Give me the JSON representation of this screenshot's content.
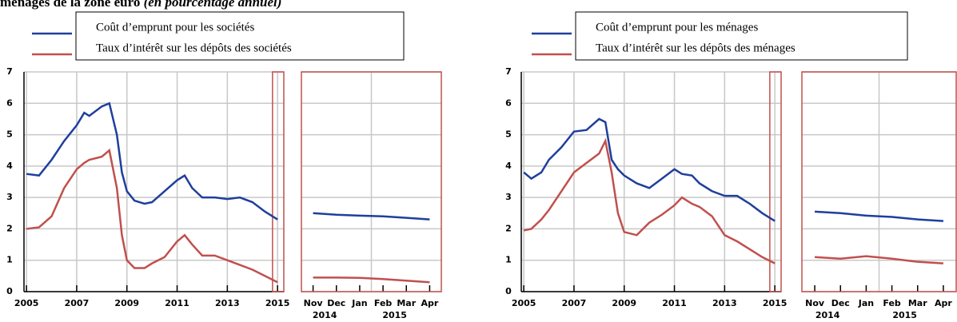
{
  "header": {
    "title": "ménages de la zone euro",
    "subtitle": "(en pourcentage annuel)"
  },
  "chart_data": [
    {
      "type": "line",
      "x": [
        2005,
        2005.5,
        2006,
        2006.5,
        2007,
        2007.3,
        2007.5,
        2008,
        2008.3,
        2008.6,
        2008.8,
        2009,
        2009.3,
        2009.7,
        2010,
        2010.5,
        2011,
        2011.3,
        2011.6,
        2012,
        2012.5,
        2013,
        2013.5,
        2014,
        2014.5,
        2015
      ],
      "series": [
        {
          "name": "Coût d’emprunt pour les sociétés",
          "color": "#1f3f9c",
          "values": [
            3.75,
            3.7,
            4.2,
            4.8,
            5.3,
            5.7,
            5.6,
            5.9,
            6.0,
            5.0,
            3.8,
            3.2,
            2.9,
            2.8,
            2.85,
            3.2,
            3.55,
            3.7,
            3.3,
            3.0,
            3.0,
            2.95,
            3.0,
            2.85,
            2.55,
            2.3
          ]
        },
        {
          "name": "Taux d’intérêt sur les dépôts des sociétés",
          "color": "#c0504d",
          "values": [
            2.0,
            2.05,
            2.4,
            3.3,
            3.9,
            4.1,
            4.2,
            4.3,
            4.5,
            3.3,
            1.8,
            1.0,
            0.75,
            0.75,
            0.9,
            1.1,
            1.6,
            1.8,
            1.5,
            1.15,
            1.15,
            1.0,
            0.85,
            0.7,
            0.5,
            0.3
          ]
        }
      ],
      "xlim": [
        2004.9,
        2015.25
      ],
      "xticks": [
        2005,
        2007,
        2009,
        2011,
        2013,
        2015
      ],
      "ylim": [
        0,
        7
      ],
      "yticks": [
        0,
        1,
        2,
        3,
        4,
        5,
        6,
        7
      ],
      "grid": true,
      "highlight": [
        2014.8,
        2015.25
      ]
    },
    {
      "type": "line",
      "categories": [
        "Nov",
        "Dec",
        "Jan",
        "Feb",
        "Mar",
        "Apr"
      ],
      "year_groups": [
        {
          "label": "2014",
          "span": 2
        },
        {
          "label": "2015",
          "span": 4
        }
      ],
      "series": [
        {
          "color": "#1f3f9c",
          "values": [
            2.5,
            2.45,
            2.42,
            2.4,
            2.35,
            2.3
          ]
        },
        {
          "color": "#c0504d",
          "values": [
            0.45,
            0.45,
            0.44,
            0.4,
            0.35,
            0.3
          ]
        }
      ],
      "ylim": [
        0,
        7
      ],
      "yticks": [
        0,
        1,
        2,
        3,
        4,
        5,
        6,
        7
      ],
      "grid": true
    },
    {
      "type": "line",
      "x": [
        2005,
        2005.3,
        2005.7,
        2006,
        2006.5,
        2007,
        2007.5,
        2008,
        2008.25,
        2008.5,
        2008.75,
        2009,
        2009.5,
        2010,
        2010.5,
        2011,
        2011.3,
        2011.7,
        2012,
        2012.5,
        2013,
        2013.5,
        2014,
        2014.5,
        2015
      ],
      "series": [
        {
          "name": "Coût d’emprunt pour les ménages",
          "color": "#1f3f9c",
          "values": [
            3.8,
            3.6,
            3.8,
            4.2,
            4.6,
            5.1,
            5.15,
            5.5,
            5.4,
            4.2,
            3.9,
            3.7,
            3.45,
            3.3,
            3.6,
            3.9,
            3.75,
            3.7,
            3.45,
            3.2,
            3.05,
            3.05,
            2.8,
            2.5,
            2.25
          ]
        },
        {
          "name": "Taux d’intérêt sur les dépôts des ménages",
          "color": "#c0504d",
          "values": [
            1.95,
            2.0,
            2.3,
            2.6,
            3.2,
            3.8,
            4.1,
            4.4,
            4.8,
            3.8,
            2.5,
            1.9,
            1.8,
            2.2,
            2.45,
            2.75,
            3.0,
            2.8,
            2.7,
            2.4,
            1.8,
            1.6,
            1.35,
            1.1,
            0.9
          ]
        }
      ],
      "xlim": [
        2004.9,
        2015.25
      ],
      "xticks": [
        2005,
        2007,
        2009,
        2011,
        2013,
        2015
      ],
      "ylim": [
        0,
        7
      ],
      "yticks": [
        0,
        1,
        2,
        3,
        4,
        5,
        6,
        7
      ],
      "grid": true,
      "highlight": [
        2014.8,
        2015.25
      ]
    },
    {
      "type": "line",
      "categories": [
        "Nov",
        "Dec",
        "Jan",
        "Feb",
        "Mar",
        "Apr"
      ],
      "year_groups": [
        {
          "label": "2014",
          "span": 2
        },
        {
          "label": "2015",
          "span": 4
        }
      ],
      "series": [
        {
          "color": "#1f3f9c",
          "values": [
            2.55,
            2.5,
            2.42,
            2.38,
            2.3,
            2.25
          ]
        },
        {
          "color": "#c0504d",
          "values": [
            1.1,
            1.05,
            1.13,
            1.05,
            0.95,
            0.9
          ]
        }
      ],
      "ylim": [
        0,
        7
      ],
      "yticks": [
        0,
        1,
        2,
        3,
        4,
        5,
        6,
        7
      ],
      "grid": true
    }
  ]
}
